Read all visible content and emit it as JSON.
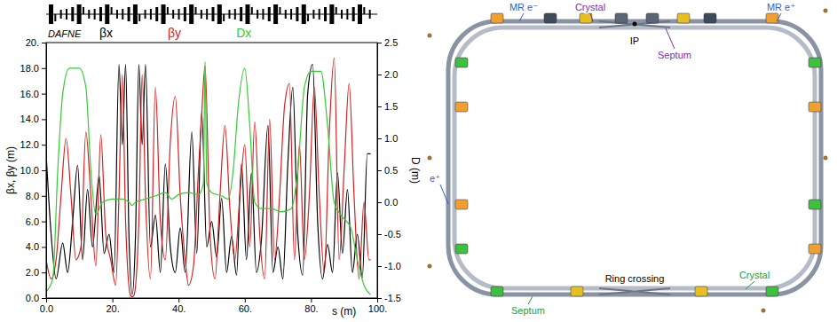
{
  "chart_data": {
    "type": "line",
    "title": "DAFNE",
    "x_label": "s (m)",
    "y_label": "βx, βy (m)",
    "y2_label": "D (m)",
    "xlim": [
      0,
      100
    ],
    "xticks": [
      {
        "value": 0,
        "label": "0.0"
      },
      {
        "value": 20,
        "label": "20."
      },
      {
        "value": 40,
        "label": "40."
      },
      {
        "value": 60,
        "label": "60."
      },
      {
        "value": 80,
        "label": "80."
      },
      {
        "value": 100,
        "label": "100."
      }
    ],
    "ylim": [
      0,
      20
    ],
    "yticks": [
      {
        "value": 0,
        "label": "0.0"
      },
      {
        "value": 2,
        "label": "2.0"
      },
      {
        "value": 4,
        "label": "4.0"
      },
      {
        "value": 6,
        "label": "6.0"
      },
      {
        "value": 8,
        "label": "8.0"
      },
      {
        "value": 10,
        "label": "10.0"
      },
      {
        "value": 12,
        "label": "12.0"
      },
      {
        "value": 14,
        "label": "14.0"
      },
      {
        "value": 16,
        "label": "16.0"
      },
      {
        "value": 18,
        "label": "18.0"
      },
      {
        "value": 20,
        "label": "20."
      }
    ],
    "y2lim": [
      -1.5,
      2.5
    ],
    "y2ticks": [
      -1.5,
      {
        "value": -1,
        "label": "-1.0"
      },
      -0.5,
      {
        "value": 0,
        "label": "0.0"
      },
      0.5,
      {
        "value": 1,
        "label": "1.0"
      },
      1.5,
      {
        "value": 2,
        "label": "2.0"
      },
      2.5
    ],
    "grid": false,
    "legend": "top",
    "series": [
      {
        "name": "βx",
        "color": "#000000",
        "x": [
          0,
          1.5,
          3,
          5,
          6.5,
          8,
          9.5,
          11,
          12.5,
          14,
          16,
          17.5,
          19,
          20.5,
          22,
          23,
          24,
          25,
          26,
          27,
          28,
          29,
          30,
          31.5,
          33,
          34.5,
          36,
          37.5,
          39,
          40.5,
          42,
          44,
          45.5,
          47,
          48.5,
          50,
          51.5,
          53,
          54.5,
          56,
          57.5,
          59,
          60.5,
          62,
          63.5,
          65,
          67,
          68.5,
          70,
          71.5,
          73,
          74.5,
          76,
          77.5,
          79,
          80.5,
          82,
          83.5,
          85,
          86.5,
          88,
          89.5,
          91,
          92.5,
          94,
          95.5,
          97,
          98
        ],
        "values": [
          11.3,
          5,
          1.5,
          4.3,
          2,
          6,
          10.4,
          3,
          8.5,
          4,
          9.6,
          3.5,
          5,
          2,
          18.3,
          12,
          18.3,
          5,
          0.3,
          5,
          18.3,
          12,
          18.3,
          4,
          6.5,
          2,
          10.5,
          4,
          2,
          5.5,
          2,
          13,
          3.5,
          14.5,
          4,
          6,
          3.2,
          7.8,
          2,
          4.8,
          1.8,
          10.5,
          3,
          9.8,
          2,
          4.5,
          13.5,
          2,
          4,
          1.5,
          10.5,
          16.5,
          5,
          1.8,
          16,
          18.3,
          6,
          1.5,
          4.2,
          2,
          9.8,
          3.5,
          8.5,
          2,
          5,
          1.6,
          11.3,
          11.3
        ]
      },
      {
        "name": "βy",
        "color": "#d42020",
        "x": [
          0,
          1.5,
          3,
          4.5,
          6,
          7.5,
          9,
          10.5,
          12,
          13.5,
          15,
          16.5,
          18,
          19.5,
          21,
          22,
          23,
          24,
          25.5,
          26,
          26.5,
          28,
          29,
          30,
          31.5,
          33,
          34.5,
          36,
          37.5,
          39,
          40.5,
          42,
          43,
          44.5,
          46,
          47,
          48,
          49.5,
          51,
          52.5,
          54,
          55.5,
          57,
          58.5,
          60,
          61.5,
          63,
          64.5,
          66,
          67.5,
          69,
          70.5,
          72,
          73.5,
          75,
          76.5,
          78,
          79.5,
          81,
          82.5,
          84,
          85.5,
          87,
          88.5,
          90,
          91.5,
          93,
          94.5,
          96,
          97.5,
          98
        ],
        "values": [
          3,
          1.5,
          3,
          8,
          12.5,
          8,
          3,
          4,
          13,
          8,
          2.5,
          12.8,
          5,
          3,
          1,
          8,
          17.5,
          6,
          0.2,
          0.1,
          0.2,
          6,
          17.5,
          8,
          1.5,
          16.5,
          6,
          3,
          12.2,
          15.8,
          8,
          3,
          1,
          2.5,
          10,
          14.5,
          18.2,
          5,
          1.5,
          8,
          13.5,
          7,
          3,
          8,
          12,
          4,
          13.8,
          5,
          1.5,
          14,
          3,
          8,
          15,
          16.8,
          3,
          12,
          3,
          8,
          16.5,
          8,
          2,
          12.8,
          18.8,
          3,
          10,
          16.8,
          8,
          1.5,
          7.5,
          3,
          3
        ]
      },
      {
        "name": "Dx",
        "color": "#33cc33",
        "axis": "y2",
        "x": [
          0,
          2,
          3.5,
          5,
          7,
          10,
          12,
          13.5,
          15,
          17,
          20,
          23,
          25,
          26,
          27,
          30,
          33,
          36,
          38,
          40,
          43,
          46,
          47.5,
          48,
          48.5,
          50,
          53,
          55,
          56.5,
          58,
          60,
          61.5,
          63,
          65,
          68,
          71,
          74,
          76,
          78,
          80,
          83,
          85,
          87,
          89,
          92,
          94,
          96,
          98
        ],
        "values": [
          -1.4,
          -1.2,
          0.5,
          1.7,
          2.1,
          2.1,
          1.8,
          0.5,
          -0.2,
          0,
          0.05,
          0.05,
          0,
          -0.05,
          0,
          0.05,
          0.1,
          0.15,
          0.05,
          0.12,
          0.15,
          0.12,
          0.3,
          2.2,
          0.3,
          0.15,
          0.1,
          0.05,
          0.5,
          1.5,
          2.1,
          1.2,
          0,
          -0.1,
          -0.1,
          -0.15,
          -0.1,
          0.5,
          1.8,
          2.05,
          2.05,
          1.2,
          0,
          -0.2,
          -0.4,
          -0.9,
          -1.3,
          -1.45
        ]
      }
    ]
  },
  "diagram": {
    "labels": [
      {
        "text": "MR e⁻",
        "color": "#2f62c9"
      },
      {
        "text": "Crystal",
        "color": "#7b2fb0"
      },
      {
        "text": "MR e⁺",
        "color": "#2f62c9"
      },
      {
        "text": "IP",
        "color": "#000000"
      },
      {
        "text": "Septum",
        "color": "#7b2fb0"
      },
      {
        "text": "e⁺",
        "color": "#2f62c9"
      },
      {
        "text": "Ring crossing",
        "color": "#000000"
      },
      {
        "text": "Crystal",
        "color": "#1f9e3a"
      },
      {
        "text": "Septum",
        "color": "#1f9e3a"
      }
    ]
  }
}
